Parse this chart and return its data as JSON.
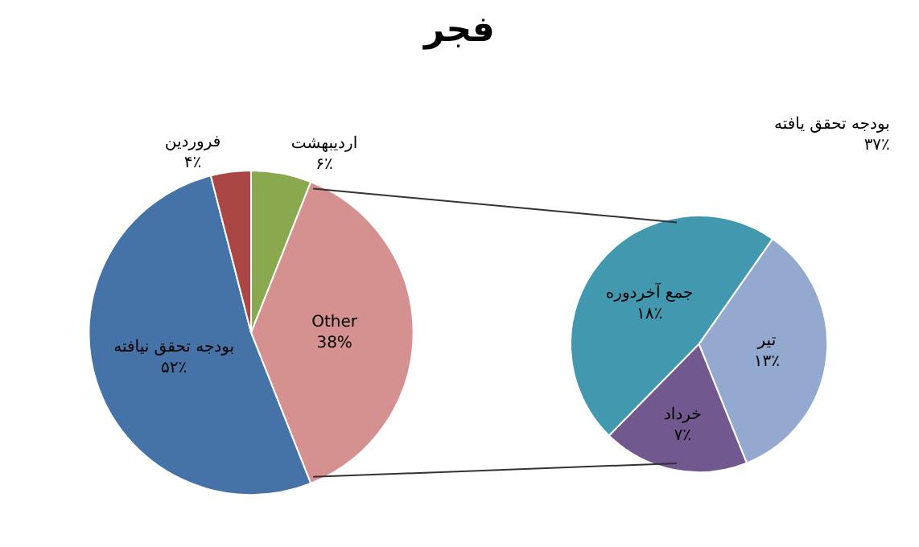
{
  "chart_data": [
    {
      "type": "pie",
      "title": "فجر",
      "categories": [
        "اردیبهشت",
        "Other",
        "بودجه تحقق نیافته",
        "فروردین"
      ],
      "values": [
        6,
        38,
        52,
        4
      ],
      "value_labels": [
        "۶٪",
        "38%",
        "۵۲٪",
        "۴٪"
      ],
      "colors": [
        "#8aa84e",
        "#d4918f",
        "#4572a7",
        "#aa4643"
      ]
    },
    {
      "type": "pie",
      "categories": [
        "تیر",
        "خرداد",
        "جمع آخردوره"
      ],
      "values": [
        13,
        7,
        18
      ],
      "value_labels": [
        "۱۳٪",
        "۷٪",
        "۱۸٪"
      ],
      "colors": [
        "#93a9cf",
        "#71588f",
        "#4198af"
      ],
      "annotations": [
        "بودجه تحقق یافته\n۳۷٪"
      ]
    }
  ]
}
